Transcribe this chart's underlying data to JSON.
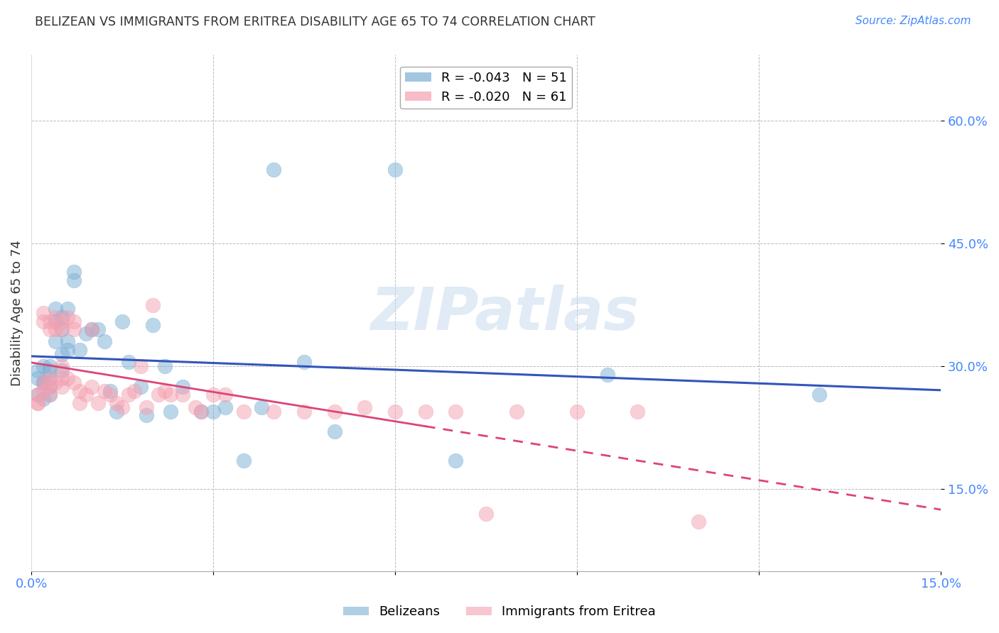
{
  "title": "BELIZEAN VS IMMIGRANTS FROM ERITREA DISABILITY AGE 65 TO 74 CORRELATION CHART",
  "source": "Source: ZipAtlas.com",
  "ylabel": "Disability Age 65 to 74",
  "ytick_values": [
    0.15,
    0.3,
    0.45,
    0.6
  ],
  "xlim": [
    0.0,
    0.15
  ],
  "ylim": [
    0.05,
    0.68
  ],
  "legend_blue_r": "R = -0.043",
  "legend_blue_n": "N = 51",
  "legend_pink_r": "R = -0.020",
  "legend_pink_n": "N = 61",
  "blue_color": "#7BAFD4",
  "pink_color": "#F4A0B0",
  "trendline_blue": "#3355BB",
  "trendline_pink": "#DD4477",
  "watermark_color": "#C5D8EE",
  "watermark": "ZIPatlas",
  "background_color": "#ffffff",
  "grid_color": "#bbbbbb",
  "axis_label_color": "#4488FF",
  "title_color": "#333333",
  "belizeans_x": [
    0.001,
    0.001,
    0.001,
    0.002,
    0.002,
    0.002,
    0.002,
    0.003,
    0.003,
    0.003,
    0.003,
    0.003,
    0.004,
    0.004,
    0.004,
    0.005,
    0.005,
    0.005,
    0.005,
    0.006,
    0.006,
    0.006,
    0.007,
    0.007,
    0.008,
    0.009,
    0.01,
    0.011,
    0.012,
    0.013,
    0.014,
    0.015,
    0.016,
    0.018,
    0.019,
    0.02,
    0.022,
    0.023,
    0.025,
    0.028,
    0.03,
    0.032,
    0.035,
    0.038,
    0.04,
    0.045,
    0.05,
    0.06,
    0.07,
    0.095,
    0.13
  ],
  "belizeans_y": [
    0.285,
    0.295,
    0.265,
    0.3,
    0.28,
    0.26,
    0.28,
    0.295,
    0.275,
    0.3,
    0.285,
    0.265,
    0.37,
    0.355,
    0.33,
    0.36,
    0.345,
    0.295,
    0.315,
    0.37,
    0.33,
    0.32,
    0.415,
    0.405,
    0.32,
    0.34,
    0.345,
    0.345,
    0.33,
    0.27,
    0.245,
    0.355,
    0.305,
    0.275,
    0.24,
    0.35,
    0.3,
    0.245,
    0.275,
    0.245,
    0.245,
    0.25,
    0.185,
    0.25,
    0.54,
    0.305,
    0.22,
    0.54,
    0.185,
    0.29,
    0.265
  ],
  "eritrea_x": [
    0.001,
    0.001,
    0.001,
    0.002,
    0.002,
    0.002,
    0.002,
    0.003,
    0.003,
    0.003,
    0.003,
    0.003,
    0.004,
    0.004,
    0.004,
    0.005,
    0.005,
    0.005,
    0.005,
    0.005,
    0.006,
    0.006,
    0.007,
    0.007,
    0.007,
    0.008,
    0.008,
    0.009,
    0.01,
    0.01,
    0.011,
    0.012,
    0.013,
    0.014,
    0.015,
    0.016,
    0.017,
    0.018,
    0.019,
    0.02,
    0.021,
    0.022,
    0.023,
    0.025,
    0.027,
    0.028,
    0.03,
    0.032,
    0.035,
    0.04,
    0.045,
    0.05,
    0.055,
    0.06,
    0.065,
    0.07,
    0.075,
    0.08,
    0.09,
    0.1,
    0.11
  ],
  "eritrea_y": [
    0.265,
    0.255,
    0.255,
    0.365,
    0.355,
    0.28,
    0.27,
    0.355,
    0.345,
    0.285,
    0.275,
    0.265,
    0.36,
    0.345,
    0.28,
    0.355,
    0.345,
    0.3,
    0.285,
    0.275,
    0.36,
    0.285,
    0.355,
    0.345,
    0.28,
    0.27,
    0.255,
    0.265,
    0.345,
    0.275,
    0.255,
    0.27,
    0.265,
    0.255,
    0.25,
    0.265,
    0.27,
    0.3,
    0.25,
    0.375,
    0.265,
    0.27,
    0.265,
    0.265,
    0.25,
    0.245,
    0.265,
    0.265,
    0.245,
    0.245,
    0.245,
    0.245,
    0.25,
    0.245,
    0.245,
    0.245,
    0.12,
    0.245,
    0.245,
    0.245,
    0.11
  ]
}
